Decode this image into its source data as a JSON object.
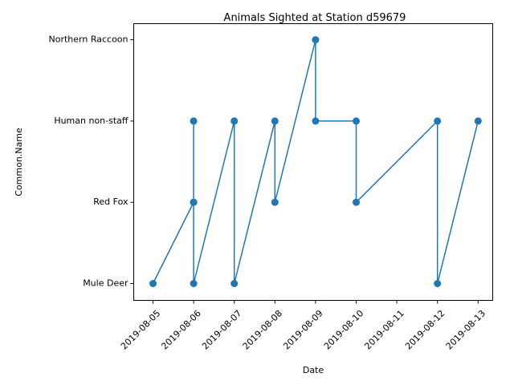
{
  "chart_data": {
    "type": "line",
    "title": "Animals Sighted at Station d59679",
    "xlabel": "Date",
    "ylabel": "Common.Name",
    "x_ticks": [
      "2019-08-05",
      "2019-08-06",
      "2019-08-07",
      "2019-08-08",
      "2019-08-09",
      "2019-08-10",
      "2019-08-11",
      "2019-08-12",
      "2019-08-13"
    ],
    "y_categories": [
      "Mule Deer",
      "Red Fox",
      "Human non-staff",
      "Northern Raccoon"
    ],
    "points": [
      {
        "x": "2019-08-05",
        "y": "Mule Deer"
      },
      {
        "x": "2019-08-06",
        "y": "Red Fox"
      },
      {
        "x": "2019-08-06",
        "y": "Human non-staff"
      },
      {
        "x": "2019-08-06",
        "y": "Red Fox"
      },
      {
        "x": "2019-08-06",
        "y": "Mule Deer"
      },
      {
        "x": "2019-08-07",
        "y": "Human non-staff"
      },
      {
        "x": "2019-08-07",
        "y": "Mule Deer"
      },
      {
        "x": "2019-08-08",
        "y": "Human non-staff"
      },
      {
        "x": "2019-08-08",
        "y": "Red Fox"
      },
      {
        "x": "2019-08-09",
        "y": "Northern Raccoon"
      },
      {
        "x": "2019-08-09",
        "y": "Human non-staff"
      },
      {
        "x": "2019-08-10",
        "y": "Human non-staff"
      },
      {
        "x": "2019-08-10",
        "y": "Red Fox"
      },
      {
        "x": "2019-08-12",
        "y": "Human non-staff"
      },
      {
        "x": "2019-08-12",
        "y": "Mule Deer"
      },
      {
        "x": "2019-08-13",
        "y": "Human non-staff"
      }
    ],
    "series_color": "#1f77b4",
    "marker": "circle",
    "grid": false,
    "legend": false
  }
}
